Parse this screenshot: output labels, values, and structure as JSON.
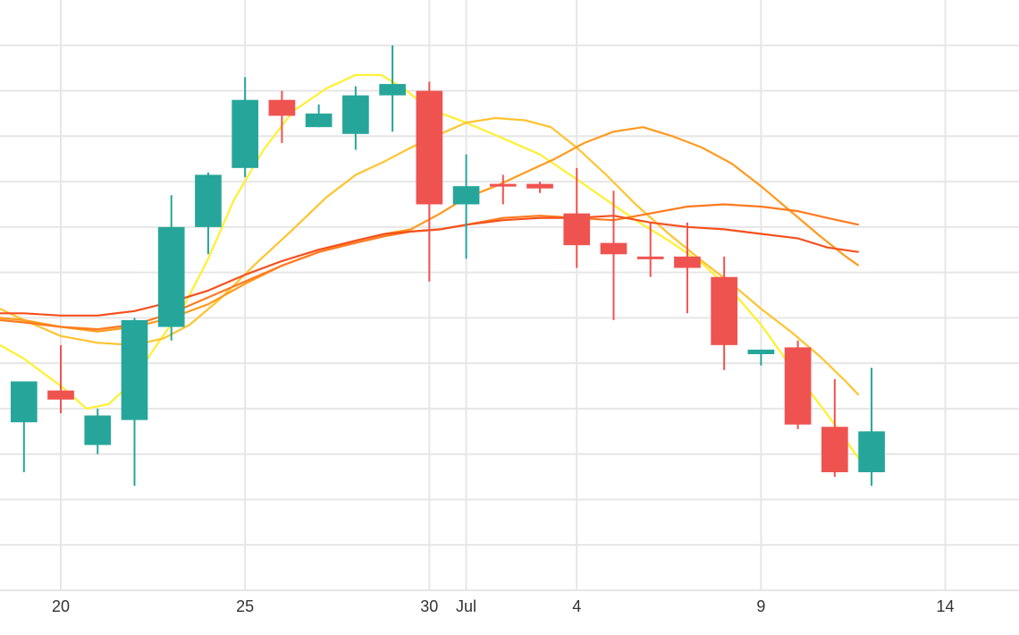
{
  "chart_data": {
    "type": "candlestick",
    "title": "",
    "xlabel": "",
    "ylabel": "",
    "grid": true,
    "x_ticks": [
      {
        "day": 20,
        "label": "20"
      },
      {
        "day": 25,
        "label": "25"
      },
      {
        "day": 30,
        "label": "30"
      },
      {
        "day": 31,
        "label": "Jul"
      },
      {
        "day": 34,
        "label": "4"
      },
      {
        "day": 39,
        "label": "9"
      },
      {
        "day": 44,
        "label": "14"
      }
    ],
    "y_grid_values": [
      12,
      11,
      10,
      9,
      8,
      7,
      6,
      5,
      4,
      3,
      2,
      1,
      0
    ],
    "ylim": [
      0,
      13
    ],
    "xlim": [
      18.35,
      46.0
    ],
    "colors": {
      "up": "#26a69a",
      "down": "#ef5350",
      "grid": "#e6e6e6"
    },
    "candles": [
      {
        "day": 19,
        "open": 3.7,
        "high": 4.6,
        "low": 2.6,
        "close": 4.6
      },
      {
        "day": 20,
        "open": 4.4,
        "high": 5.4,
        "low": 3.9,
        "close": 4.2
      },
      {
        "day": 21,
        "open": 3.2,
        "high": 4.0,
        "low": 3.0,
        "close": 3.85
      },
      {
        "day": 22,
        "open": 3.75,
        "high": 6.0,
        "low": 2.3,
        "close": 5.95
      },
      {
        "day": 23,
        "open": 5.8,
        "high": 8.7,
        "low": 5.5,
        "close": 8.0
      },
      {
        "day": 24,
        "open": 8.0,
        "high": 9.2,
        "low": 7.4,
        "close": 9.15
      },
      {
        "day": 25,
        "open": 9.3,
        "high": 11.3,
        "low": 9.1,
        "close": 10.8
      },
      {
        "day": 26,
        "open": 10.8,
        "high": 11.0,
        "low": 9.85,
        "close": 10.45
      },
      {
        "day": 27,
        "open": 10.2,
        "high": 10.7,
        "low": 10.2,
        "close": 10.5
      },
      {
        "day": 28,
        "open": 10.05,
        "high": 11.1,
        "low": 9.7,
        "close": 10.9
      },
      {
        "day": 29,
        "open": 10.9,
        "high": 12.0,
        "low": 10.1,
        "close": 11.15
      },
      {
        "day": 30,
        "open": 11.0,
        "high": 11.2,
        "low": 6.8,
        "close": 8.5
      },
      {
        "day": 31,
        "open": 8.5,
        "high": 9.6,
        "low": 7.3,
        "close": 8.9
      },
      {
        "day": 32,
        "open": 8.95,
        "high": 9.15,
        "low": 8.5,
        "close": 8.9
      },
      {
        "day": 33,
        "open": 8.95,
        "high": 9.0,
        "low": 8.75,
        "close": 8.85
      },
      {
        "day": 34,
        "open": 8.3,
        "high": 9.3,
        "low": 7.1,
        "close": 7.6
      },
      {
        "day": 35,
        "open": 7.65,
        "high": 8.8,
        "low": 5.95,
        "close": 7.4
      },
      {
        "day": 36,
        "open": 7.35,
        "high": 8.1,
        "low": 6.9,
        "close": 7.3
      },
      {
        "day": 37,
        "open": 7.35,
        "high": 8.1,
        "low": 6.1,
        "close": 7.1
      },
      {
        "day": 38,
        "open": 6.9,
        "high": 7.35,
        "low": 4.85,
        "close": 5.4
      },
      {
        "day": 39,
        "open": 5.2,
        "high": 5.3,
        "low": 4.95,
        "close": 5.3
      },
      {
        "day": 40,
        "open": 5.35,
        "high": 5.5,
        "low": 3.55,
        "close": 3.65
      },
      {
        "day": 41,
        "open": 3.6,
        "high": 4.65,
        "low": 2.5,
        "close": 2.6
      },
      {
        "day": 42,
        "open": 2.6,
        "high": 4.9,
        "low": 2.3,
        "close": 3.5
      }
    ],
    "series": [
      {
        "color": "#fff02e",
        "points": [
          [
            18.35,
            5.4
          ],
          [
            19.0,
            5.1
          ],
          [
            20.0,
            4.5
          ],
          [
            20.7,
            4.0
          ],
          [
            21.3,
            4.1
          ],
          [
            21.9,
            4.55
          ],
          [
            22.6,
            5.4
          ],
          [
            23.3,
            6.2
          ],
          [
            24.0,
            7.3
          ],
          [
            24.7,
            8.6
          ],
          [
            25.5,
            9.7
          ],
          [
            26.3,
            10.55
          ],
          [
            27.2,
            11.05
          ],
          [
            28.0,
            11.35
          ],
          [
            28.7,
            11.35
          ],
          [
            29.3,
            11.05
          ],
          [
            30.0,
            10.6
          ],
          [
            31.0,
            10.3
          ],
          [
            32.0,
            9.95
          ],
          [
            33.0,
            9.6
          ],
          [
            34.0,
            9.05
          ],
          [
            34.8,
            8.6
          ],
          [
            35.6,
            8.15
          ],
          [
            36.5,
            7.7
          ],
          [
            37.4,
            7.2
          ],
          [
            38.2,
            6.6
          ],
          [
            39.0,
            5.85
          ],
          [
            39.7,
            5.05
          ],
          [
            40.4,
            4.3
          ],
          [
            41.0,
            3.65
          ],
          [
            41.65,
            2.9
          ]
        ]
      },
      {
        "color": "#ffc32e",
        "points": [
          [
            18.35,
            6.2
          ],
          [
            19.0,
            5.95
          ],
          [
            20.0,
            5.6
          ],
          [
            21.0,
            5.45
          ],
          [
            22.0,
            5.4
          ],
          [
            22.8,
            5.55
          ],
          [
            23.5,
            5.85
          ],
          [
            24.3,
            6.4
          ],
          [
            25.3,
            7.2
          ],
          [
            26.3,
            7.95
          ],
          [
            27.2,
            8.65
          ],
          [
            28.0,
            9.15
          ],
          [
            28.8,
            9.45
          ],
          [
            29.5,
            9.75
          ],
          [
            30.3,
            10.05
          ],
          [
            31.0,
            10.3
          ],
          [
            31.8,
            10.4
          ],
          [
            32.6,
            10.35
          ],
          [
            33.3,
            10.2
          ],
          [
            34.0,
            9.75
          ],
          [
            34.8,
            9.15
          ],
          [
            35.6,
            8.5
          ],
          [
            36.5,
            7.85
          ],
          [
            37.4,
            7.25
          ],
          [
            38.2,
            6.75
          ],
          [
            39.0,
            6.2
          ],
          [
            39.8,
            5.7
          ],
          [
            40.6,
            5.15
          ],
          [
            41.3,
            4.6
          ],
          [
            41.65,
            4.3
          ]
        ]
      },
      {
        "color": "#ff9a1e",
        "points": [
          [
            18.35,
            6.0
          ],
          [
            19.0,
            5.95
          ],
          [
            20.0,
            5.8
          ],
          [
            21.0,
            5.7
          ],
          [
            22.0,
            5.8
          ],
          [
            23.0,
            6.0
          ],
          [
            24.0,
            6.3
          ],
          [
            25.0,
            6.75
          ],
          [
            26.0,
            7.15
          ],
          [
            27.0,
            7.45
          ],
          [
            28.0,
            7.7
          ],
          [
            28.8,
            7.85
          ],
          [
            29.5,
            7.95
          ],
          [
            30.3,
            8.3
          ],
          [
            31.0,
            8.65
          ],
          [
            31.8,
            8.9
          ],
          [
            32.6,
            9.2
          ],
          [
            33.4,
            9.5
          ],
          [
            34.2,
            9.85
          ],
          [
            35.0,
            10.1
          ],
          [
            35.8,
            10.2
          ],
          [
            36.6,
            10.0
          ],
          [
            37.4,
            9.75
          ],
          [
            38.2,
            9.4
          ],
          [
            39.0,
            8.9
          ],
          [
            39.8,
            8.35
          ],
          [
            40.6,
            7.8
          ],
          [
            41.3,
            7.35
          ],
          [
            41.65,
            7.15
          ]
        ]
      },
      {
        "color": "#ff7a1e",
        "points": [
          [
            18.35,
            5.95
          ],
          [
            19.0,
            5.9
          ],
          [
            20.0,
            5.8
          ],
          [
            21.0,
            5.75
          ],
          [
            22.0,
            5.85
          ],
          [
            23.0,
            6.1
          ],
          [
            24.0,
            6.45
          ],
          [
            25.0,
            6.8
          ],
          [
            26.0,
            7.15
          ],
          [
            27.0,
            7.45
          ],
          [
            28.0,
            7.65
          ],
          [
            28.8,
            7.8
          ],
          [
            29.5,
            7.9
          ],
          [
            30.3,
            7.95
          ],
          [
            31.0,
            8.05
          ],
          [
            32.0,
            8.2
          ],
          [
            33.0,
            8.25
          ],
          [
            34.0,
            8.2
          ],
          [
            35.0,
            8.15
          ],
          [
            36.0,
            8.3
          ],
          [
            37.0,
            8.45
          ],
          [
            38.0,
            8.5
          ],
          [
            39.0,
            8.45
          ],
          [
            40.0,
            8.35
          ],
          [
            40.8,
            8.2
          ],
          [
            41.65,
            8.05
          ]
        ]
      },
      {
        "color": "#f4511e",
        "points": [
          [
            18.35,
            6.1
          ],
          [
            19.0,
            6.1
          ],
          [
            20.0,
            6.05
          ],
          [
            21.0,
            6.05
          ],
          [
            22.0,
            6.15
          ],
          [
            23.0,
            6.35
          ],
          [
            24.0,
            6.6
          ],
          [
            25.0,
            6.95
          ],
          [
            26.0,
            7.25
          ],
          [
            27.0,
            7.5
          ],
          [
            28.0,
            7.7
          ],
          [
            28.8,
            7.85
          ],
          [
            29.5,
            7.9
          ],
          [
            30.3,
            7.95
          ],
          [
            31.0,
            8.05
          ],
          [
            32.0,
            8.15
          ],
          [
            33.0,
            8.2
          ],
          [
            34.0,
            8.2
          ],
          [
            35.0,
            8.25
          ],
          [
            36.0,
            8.1
          ],
          [
            37.0,
            8.0
          ],
          [
            38.0,
            7.95
          ],
          [
            39.0,
            7.85
          ],
          [
            40.0,
            7.75
          ],
          [
            40.8,
            7.55
          ],
          [
            41.65,
            7.45
          ]
        ]
      }
    ]
  }
}
